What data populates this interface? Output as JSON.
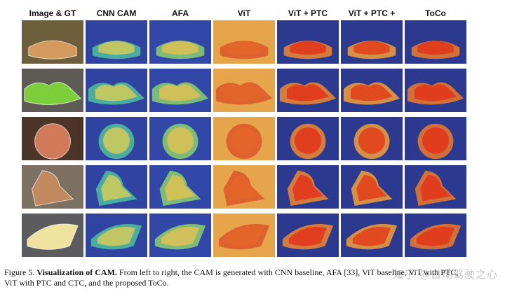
{
  "columns": [
    "Image & GT",
    "CNN CAM",
    "AFA",
    "ViT",
    "ViT + PTC",
    "ViT + PTC + CTC",
    "ToCo"
  ],
  "rows": [
    "cake",
    "bicycles",
    "plate",
    "child-on-bike",
    "bread"
  ],
  "caption": {
    "label": "Figure 5.",
    "title": "Visualization of CAM.",
    "line1": "From left to right, the CAM is generated with CNN baseline, AFA [33], ViT baseline, ViT with PTC,",
    "line2": "ViT with PTC and CTC, and the proposed ToCo."
  },
  "watermark": "知乎 @自动驾驶之心",
  "colors": {
    "cam_low": "#2b3a8f",
    "cam_mid": "#f2c94c",
    "cam_high": "#e03a1e"
  }
}
